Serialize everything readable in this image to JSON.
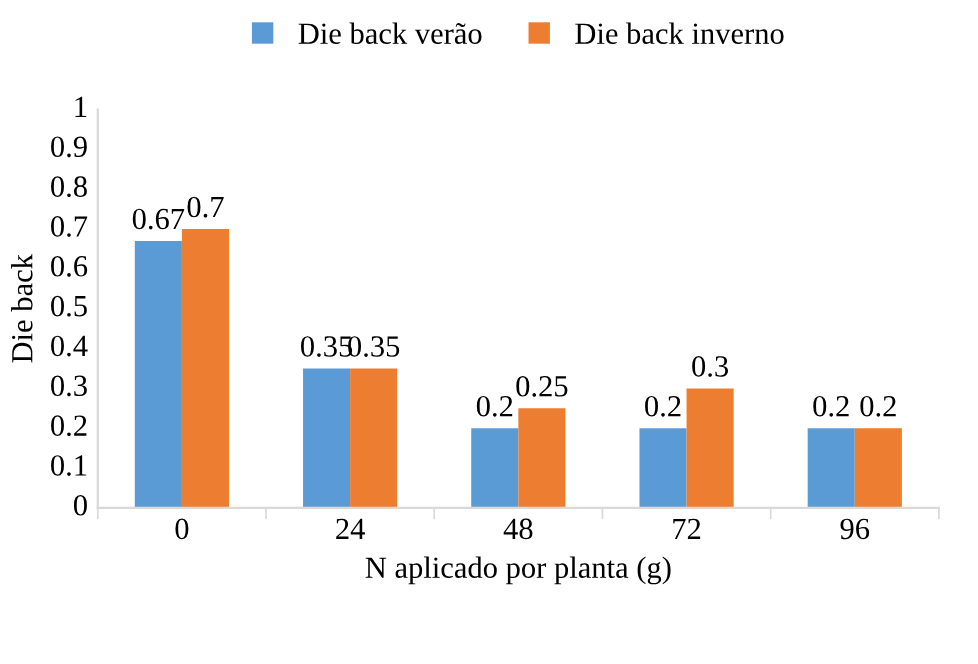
{
  "chart_data": {
    "type": "bar",
    "xlabel": "N aplicado por planta (g)",
    "ylabel": "Die back",
    "categories": [
      "0",
      "24",
      "48",
      "72",
      "96"
    ],
    "series": [
      {
        "name": "Die back verão",
        "color": "#5b9bd5",
        "values": [
          0.67,
          0.35,
          0.2,
          0.2,
          0.2
        ]
      },
      {
        "name": "Die back inverno",
        "color": "#ed7d31",
        "values": [
          0.7,
          0.35,
          0.25,
          0.3,
          0.2
        ]
      }
    ],
    "ylim": [
      0,
      1
    ],
    "yticks": [
      0,
      0.1,
      0.2,
      0.3,
      0.4,
      0.5,
      0.6,
      0.7,
      0.8,
      0.9,
      1
    ],
    "grid": false,
    "legend": "top",
    "data_labels": true
  }
}
